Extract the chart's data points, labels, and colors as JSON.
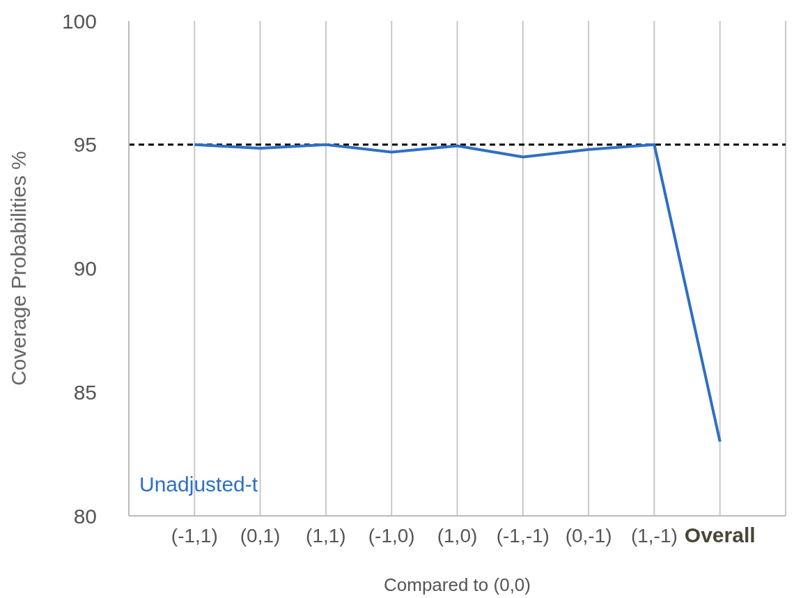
{
  "chart_data": {
    "type": "line",
    "xlabel": "Compared to (0,0)",
    "ylabel": "Coverage Probabilities %",
    "categories": [
      "(-1,1)",
      "(0,1)",
      "(1,1)",
      "(-1,0)",
      "(1,0)",
      "(-1,-1)",
      "(0,-1)",
      "(1,-1)",
      "Overall"
    ],
    "series": [
      {
        "name": "Unadjusted-t",
        "color": "#2e6fc4",
        "values": [
          95.0,
          94.85,
          95.0,
          94.7,
          94.95,
          94.5,
          94.8,
          95.0,
          83.0
        ]
      }
    ],
    "ylim": [
      80,
      100
    ],
    "yticks": [
      80,
      85,
      90,
      95,
      100
    ],
    "grid": "x",
    "marker": "none",
    "line_style": "solid",
    "ref_lines": [
      {
        "axis": "y",
        "value": 95,
        "color": "#000000",
        "line_style": "dashed"
      }
    ]
  }
}
